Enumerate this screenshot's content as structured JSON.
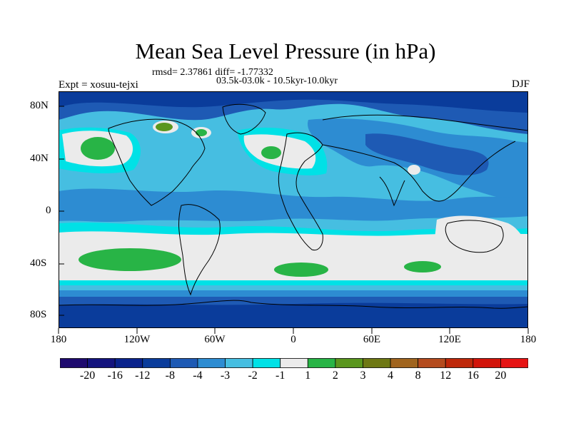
{
  "title": "Mean Sea Level Pressure (in hPa)",
  "subtitle": {
    "stats": "rmsd= 2.37861 diff= -1.77332",
    "period": "03.5k-03.0k - 10.5kyr-10.0kyr",
    "left_label": "Expt = xosuu-tejxi",
    "right_label": "DJF"
  },
  "map": {
    "projection": "cylindrical equidistant",
    "lon_range": [
      -180,
      180
    ],
    "lat_range": [
      -90,
      90
    ],
    "y_ticks": [
      "80N",
      "40N",
      "0",
      "40S",
      "80S"
    ],
    "x_ticks": [
      "180",
      "120W",
      "60W",
      "0",
      "60E",
      "120E",
      "180"
    ]
  },
  "colorbar": {
    "labels": [
      "-20",
      "-16",
      "-12",
      "-8",
      "-4",
      "-3",
      "-2",
      "-1",
      "1",
      "2",
      "3",
      "4",
      "8",
      "12",
      "16",
      "20"
    ],
    "colors": [
      "#1e0a6e",
      "#14147e",
      "#0a238c",
      "#0a3c9b",
      "#1e5ab4",
      "#2d8cd2",
      "#46bee1",
      "#00e1e6",
      "#ebebeb",
      "#28b446",
      "#5a961e",
      "#6e7814",
      "#a0641e",
      "#b44b1e",
      "#be280a",
      "#d2140a",
      "#e61414"
    ]
  }
}
